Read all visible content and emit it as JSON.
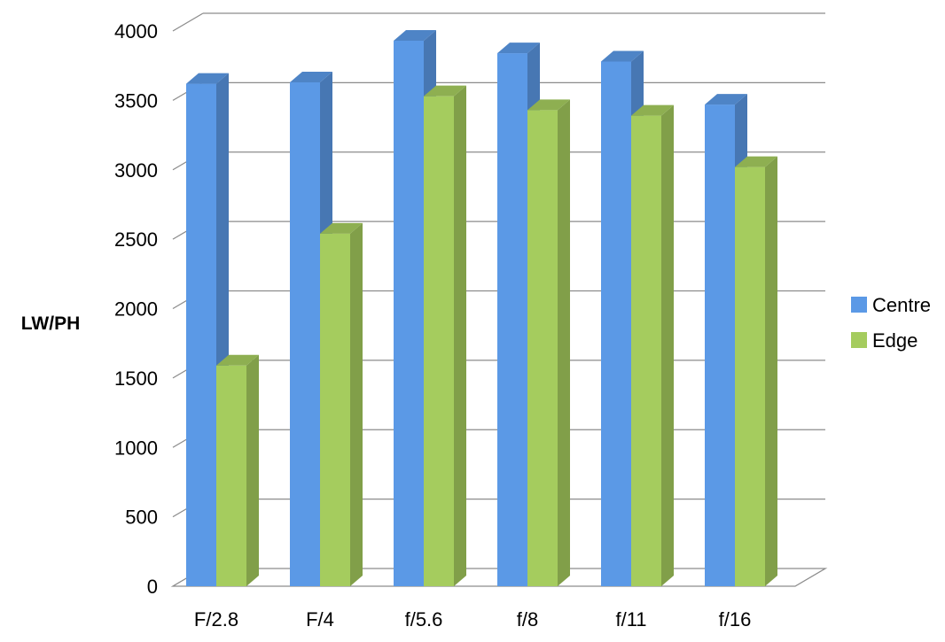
{
  "chart_data": {
    "type": "bar",
    "title": "",
    "xlabel": "",
    "ylabel": "LW/PH",
    "categories": [
      "F/2.8",
      "F/4",
      "f/5.6",
      "f/8",
      "f/11",
      "f/16"
    ],
    "series": [
      {
        "name": "Centre",
        "color": "#5b99e6",
        "values": [
          3620,
          3630,
          3930,
          3840,
          3780,
          3470
        ]
      },
      {
        "name": "Edge",
        "color": "#a5cc5e",
        "values": [
          1590,
          2540,
          3530,
          3430,
          3390,
          3020
        ]
      }
    ],
    "ylim": [
      0,
      4000
    ],
    "yticks": [
      "0",
      "500",
      "1000",
      "1500",
      "2000",
      "2500",
      "3000",
      "3500",
      "4000"
    ],
    "grid": true,
    "style": "3d-clustered-column",
    "legend_position": "right"
  }
}
